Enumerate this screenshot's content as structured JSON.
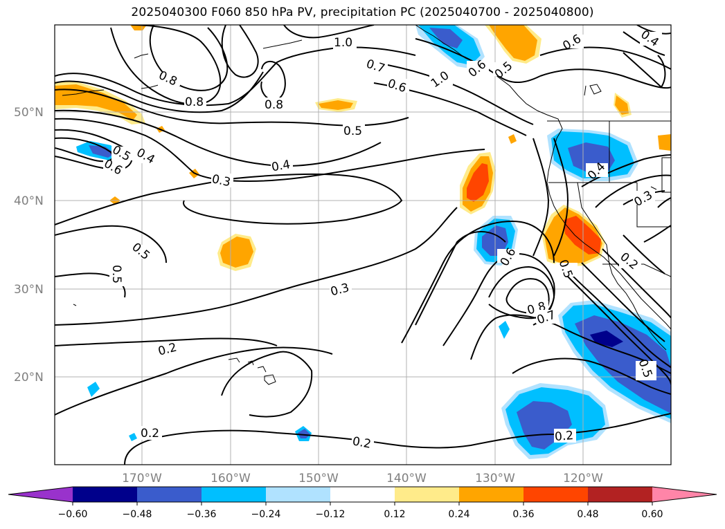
{
  "title": "2025040300 F060 850 hPa PV, precipitation PC (2025040700 - 2025040800)",
  "axes": {
    "lat_labels": [
      "50°N",
      "40°N",
      "30°N",
      "20°N"
    ],
    "lon_labels": [
      "170°W",
      "160°W",
      "150°W",
      "140°W",
      "130°W",
      "120°W"
    ]
  },
  "contour_labels": [
    "1.0",
    "0.8",
    "0.8",
    "0.7",
    "0.6",
    "1.0",
    "0.5",
    "0.6",
    "0.5",
    "0.4",
    "0.3",
    "0.4",
    "0.5",
    "0.6",
    "0.5",
    "0.5",
    "0.3",
    "0.6",
    "0.8",
    "0.7",
    "0.5",
    "0.4",
    "0.3",
    "0.2",
    "0.2",
    "0.2",
    "0.2",
    "0.2",
    "0.5",
    "0.6",
    "0.4",
    "0.8"
  ],
  "colorbar": {
    "ticks": [
      "−0.60",
      "−0.48",
      "−0.36",
      "−0.24",
      "−0.12",
      "0.12",
      "0.24",
      "0.36",
      "0.48",
      "0.60"
    ],
    "colors": [
      "#9932cc",
      "#00008b",
      "#3a5ccc",
      "#00bfff",
      "#b0e2ff",
      "#ffffff",
      "#ffeb8a",
      "#ffa500",
      "#ff4500",
      "#b22222",
      "#ff85a8"
    ]
  }
}
